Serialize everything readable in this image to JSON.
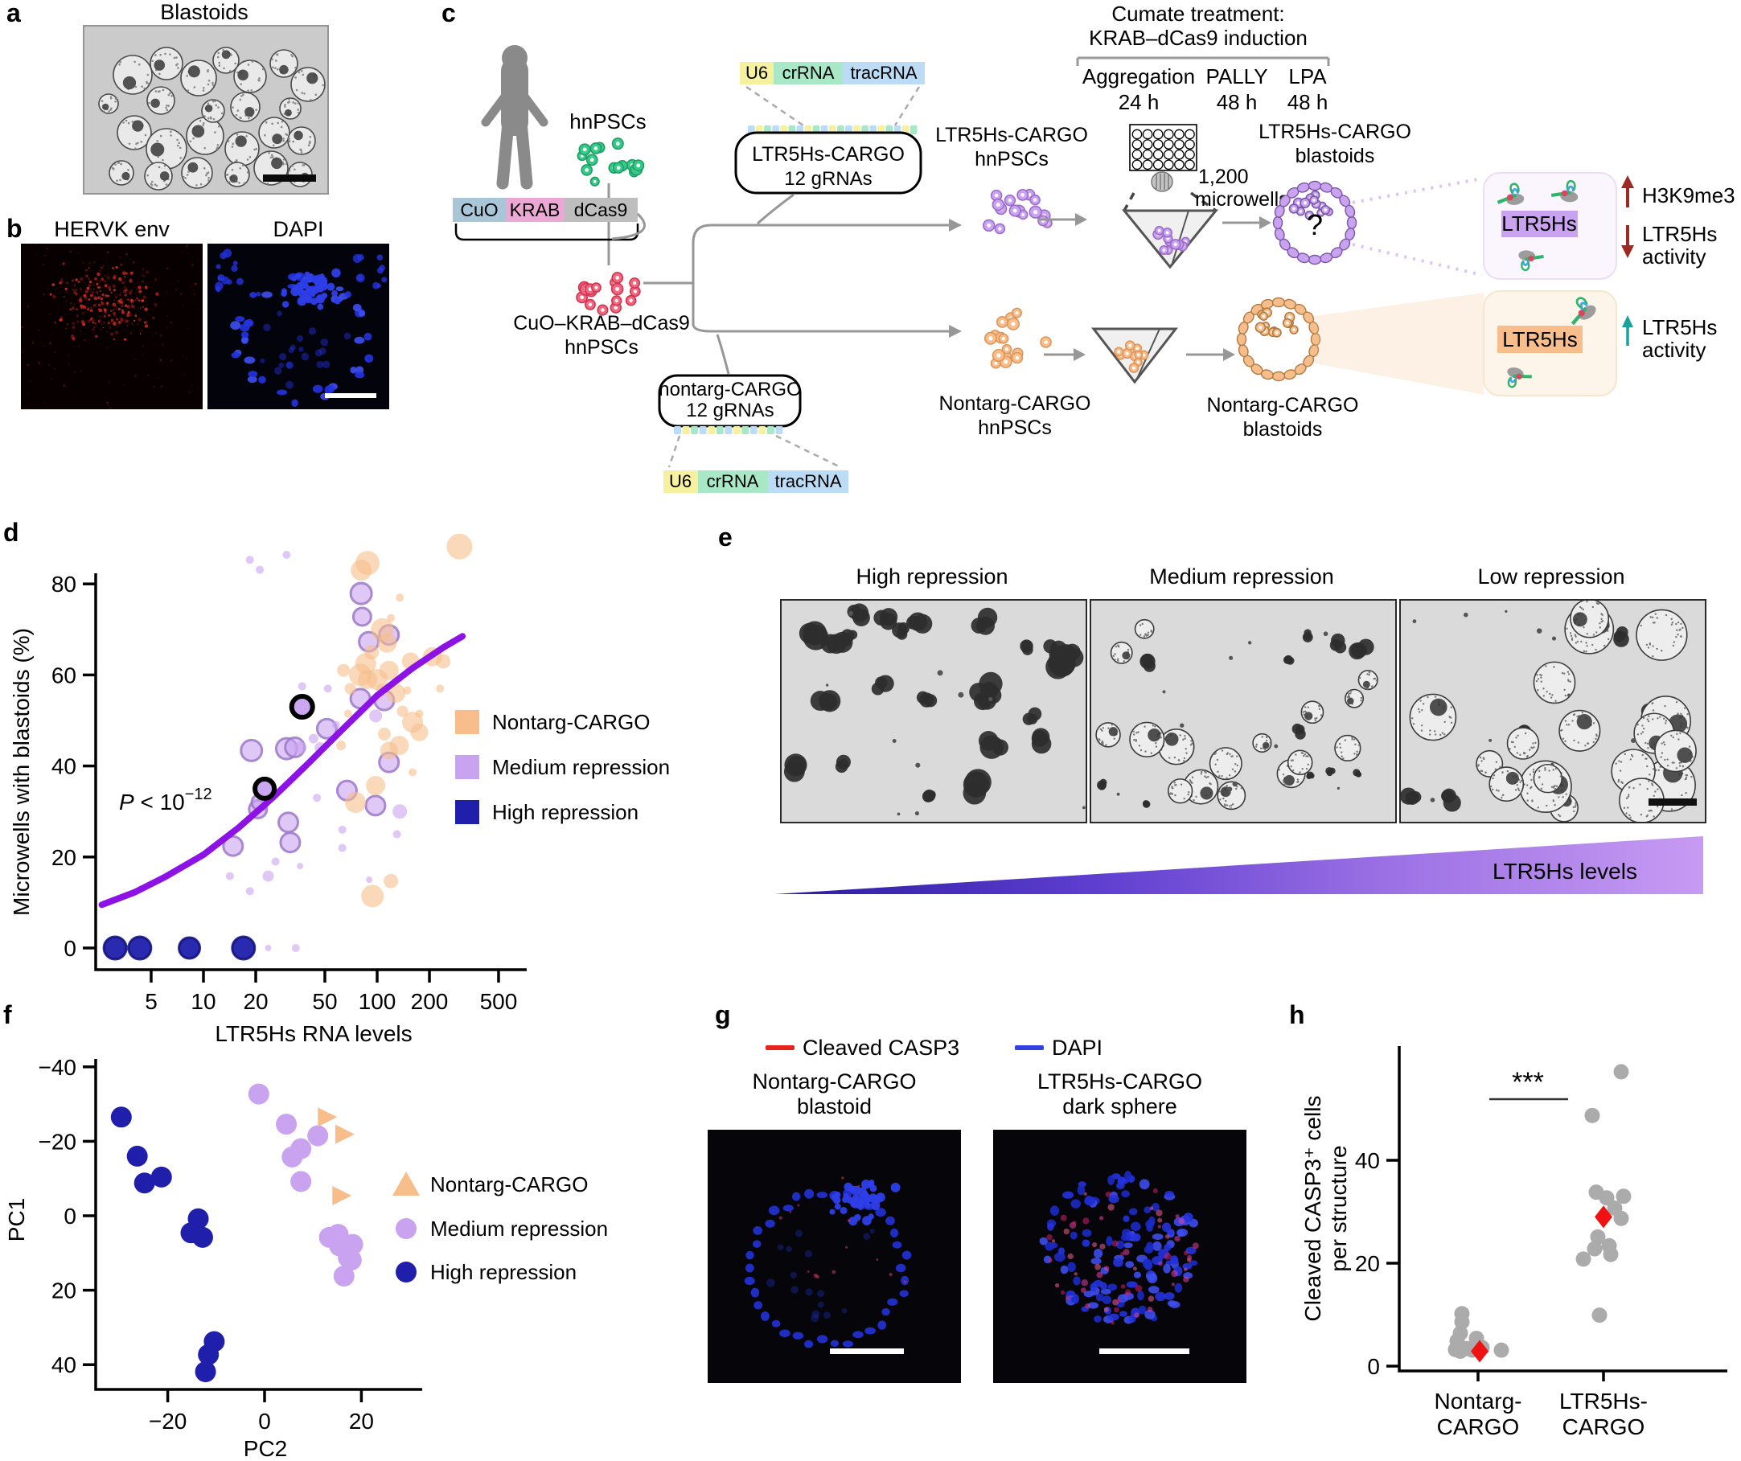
{
  "figure": {
    "a": {
      "label": "a",
      "title": "Blastoids"
    },
    "b": {
      "label": "b",
      "titles": [
        "HERVK env",
        "DAPI"
      ]
    },
    "c": {
      "label": "c",
      "hnpscs": "hnPSCs",
      "construct": [
        "CuO",
        "KRAB",
        "dCas9"
      ],
      "cuo_hnpscs": [
        "CuO–KRAB–dCas9",
        "hnPSCs"
      ],
      "grna_cassette": [
        "U6",
        "crRNA",
        "tracRNA"
      ],
      "ltr5hs_box": [
        "LTR5Hs-CARGO",
        "12 gRNAs"
      ],
      "nontarg_box": [
        "nontarg-CARGO",
        "12 gRNAs"
      ],
      "cumate": [
        "Cumate treatment:",
        "KRAB–dCas9 induction"
      ],
      "stages": [
        {
          "name": "Aggregation",
          "time": "24 h"
        },
        {
          "name": "PALLY",
          "time": "48 h"
        },
        {
          "name": "LPA",
          "time": "48 h"
        }
      ],
      "microwells": [
        "1,200",
        "microwells"
      ],
      "ltr5hs_hnpscs": [
        "LTR5Hs-CARGO",
        "hnPSCs"
      ],
      "nontarg_hnpscs": [
        "Nontarg-CARGO",
        "hnPSCs"
      ],
      "ltr5hs_blastoids": [
        "LTR5Hs-CARGO",
        "blastoids"
      ],
      "nontarg_blastoids": [
        "Nontarg-CARGO",
        "blastoids"
      ],
      "question_mark": "?",
      "gene_label": "LTR5Hs",
      "effects_top": [
        {
          "lines": [
            "H3K9me3"
          ],
          "direction": "up"
        },
        {
          "lines": [
            "LTR5Hs",
            "activity"
          ],
          "direction": "down"
        }
      ],
      "effects_bottom": [
        {
          "lines": [
            "LTR5Hs",
            "activity"
          ],
          "direction": "up"
        }
      ]
    },
    "d": {
      "label": "d"
    },
    "e": {
      "label": "e",
      "titles": [
        "High repression",
        "Medium repression",
        "Low repression"
      ],
      "wedge_label": "LTR5Hs levels"
    },
    "f": {
      "label": "f"
    },
    "g": {
      "label": "g",
      "legend": [
        {
          "label": "Cleaved CASP3"
        },
        {
          "label": "DAPI"
        }
      ],
      "titles": [
        {
          "line1": "Nontarg-CARGO",
          "line2": "blastoid"
        },
        {
          "line1": "LTR5Hs-CARGO",
          "line2": "dark sphere"
        }
      ]
    },
    "h": {
      "label": "h"
    }
  },
  "chart_data": [
    {
      "id": "d",
      "type": "scatter",
      "xscale": "log",
      "xlabel": "LTR5Hs RNA levels",
      "ylabel": "Microwells with blastoids (%)",
      "xticks": [
        5,
        10,
        20,
        50,
        100,
        200,
        500
      ],
      "yticks": [
        0,
        20,
        40,
        60,
        80
      ],
      "xlim": [
        2.5,
        500
      ],
      "ylim": [
        -6,
        92
      ],
      "grid": false,
      "legend_position": "right",
      "annotation": {
        "p": "P",
        "rest": " < 10",
        "exp": "−12"
      },
      "legend": [
        "Nontarg-CARGO",
        "Medium repression",
        "High repression"
      ],
      "trend_color": "#8C12E6",
      "trend": [
        [
          2.6,
          9.5
        ],
        [
          4,
          12.2
        ],
        [
          6,
          15.6
        ],
        [
          10,
          20.5
        ],
        [
          16,
          26.5
        ],
        [
          25,
          33
        ],
        [
          40,
          40.5
        ],
        [
          63,
          48
        ],
        [
          100,
          55.5
        ],
        [
          160,
          61.5
        ],
        [
          240,
          66
        ],
        [
          310,
          68.5
        ]
      ],
      "series": [
        {
          "name": "Nontarg-CARGO",
          "color": "#F7BE8C",
          "points": [
            [
              88,
              84.6,
              15
            ],
            [
              298,
              88.2,
              16
            ],
            [
              81,
              83,
              13
            ],
            [
              107,
              70,
              14
            ],
            [
              114,
              67,
              12
            ],
            [
              86,
              62.5,
              13
            ],
            [
              80,
              60,
              14
            ],
            [
              88,
              59,
              12
            ],
            [
              100,
              59,
              13
            ],
            [
              117,
              61,
              12
            ],
            [
              128,
              56,
              12
            ],
            [
              156,
              63,
              11
            ],
            [
              208,
              64,
              12
            ],
            [
              160,
              49.6,
              13
            ],
            [
              175,
              47.4,
              11
            ],
            [
              134,
              44.5,
              12
            ],
            [
              117,
              43.4,
              11
            ],
            [
              75,
              32,
              13
            ],
            [
              98,
              35.7,
              12
            ],
            [
              94,
              11.4,
              14
            ],
            [
              120,
              14.7,
              9
            ],
            [
              62,
              44.5,
              6
            ],
            [
              160,
              38.6,
              5
            ],
            [
              175,
              51.5,
              5
            ],
            [
              149,
              56.6,
              5
            ],
            [
              68,
              51.5,
              5
            ],
            [
              230,
              57,
              5
            ],
            [
              140,
              52,
              7
            ],
            [
              110,
              47,
              8
            ],
            [
              240,
              63,
              9
            ],
            [
              135,
              77,
              5
            ],
            [
              120,
              72.5,
              5
            ],
            [
              105,
              57,
              6
            ],
            [
              93,
              65,
              9
            ],
            [
              70,
              57,
              7
            ],
            [
              64,
              61,
              8
            ]
          ]
        },
        {
          "name": "Medium repression",
          "color": "#C9A2F0",
          "points": [
            [
              18.9,
              43.4,
              13
            ],
            [
              30.1,
              43.8,
              13
            ],
            [
              33.6,
              44.1,
              12
            ],
            [
              51.3,
              48.2,
              12
            ],
            [
              80,
              54.8,
              12
            ],
            [
              80.9,
              77.9,
              13
            ],
            [
              82,
              72.8,
              11
            ],
            [
              89.5,
              67.3,
              12
            ],
            [
              117,
              68.8,
              12
            ],
            [
              110,
              54.4,
              12
            ],
            [
              117,
              40.8,
              12
            ],
            [
              97.8,
              31.3,
              12
            ],
            [
              67,
              34.6,
              12
            ],
            [
              30.8,
              27.6,
              12
            ],
            [
              31.6,
              23.2,
              12
            ],
            [
              20.6,
              30.5,
              11
            ],
            [
              21.1,
              32,
              10
            ],
            [
              14.8,
              22.4,
              12
            ],
            [
              23.6,
              15.8,
              7
            ],
            [
              18.5,
              85.3,
              5
            ],
            [
              21.1,
              83.1,
              5
            ],
            [
              30.1,
              86.4,
              5
            ],
            [
              14.2,
              15.8,
              5
            ],
            [
              18.5,
              12.5,
              5
            ],
            [
              34,
              0,
              5
            ],
            [
              23.6,
              0,
              4
            ],
            [
              37,
              57.5,
              5
            ],
            [
              52,
              57,
              5
            ],
            [
              26,
              19,
              5
            ],
            [
              45,
              33,
              5
            ],
            [
              63,
              26,
              5
            ],
            [
              63,
              22,
              5
            ],
            [
              36,
              18,
              4
            ],
            [
              90,
              15,
              4
            ],
            [
              130,
              25,
              5
            ],
            [
              135,
              30,
              9
            ],
            [
              43,
              46,
              6
            ],
            [
              47,
              44,
              7
            ],
            [
              36,
              44,
              8
            ],
            [
              58,
              49,
              5
            ],
            [
              98,
              51,
              8
            ]
          ]
        },
        {
          "name": "High repression",
          "color": "#1F1FAC",
          "points": [
            [
              3.1,
              0,
              14
            ],
            [
              4.3,
              0,
              14
            ],
            [
              8.3,
              0,
              13
            ],
            [
              17,
              0,
              14
            ]
          ]
        },
        {
          "name": "Medium repression (outlined)",
          "color": "#C9A2F0",
          "outlined": true,
          "points": [
            [
              37,
              53,
              13
            ],
            [
              22.5,
              35,
              12
            ]
          ]
        }
      ]
    },
    {
      "id": "f",
      "type": "scatter",
      "xlabel": "PC2",
      "ylabel": "PC1",
      "xticks": [
        -20,
        0,
        20
      ],
      "yticks": [
        -40,
        -20,
        0,
        20,
        40
      ],
      "y_inverted": true,
      "xlim": [
        -35,
        30
      ],
      "ylim": [
        -42,
        45
      ],
      "grid": false,
      "legend_position": "right",
      "legend": [
        {
          "label": "Nontarg-CARGO",
          "marker": "triangle"
        },
        {
          "label": "Medium repression",
          "marker": "circle"
        },
        {
          "label": "High repression",
          "marker": "circle"
        }
      ],
      "series": [
        {
          "name": "Nontarg-CARGO",
          "color": "#F7BE8C",
          "marker": "triangle-right",
          "points": [
            [
              12.5,
              -26.5
            ],
            [
              16.1,
              -21.9
            ],
            [
              15.5,
              -5.4
            ]
          ]
        },
        {
          "name": "Medium repression",
          "color": "#C9A2F0",
          "marker": "circle",
          "points": [
            [
              -1.2,
              -32.7
            ],
            [
              4.5,
              -24.6
            ],
            [
              11,
              -21.5
            ],
            [
              7.5,
              -18
            ],
            [
              5.7,
              -15.8
            ],
            [
              7.5,
              -9.2
            ],
            [
              13.4,
              5.8
            ],
            [
              15.2,
              5
            ],
            [
              15.5,
              8.1
            ],
            [
              18.2,
              7.7
            ],
            [
              17.3,
              11.2
            ],
            [
              17.9,
              11.9
            ],
            [
              16.4,
              16.2
            ]
          ]
        },
        {
          "name": "High repression",
          "color": "#1F1FAC",
          "marker": "circle",
          "points": [
            [
              -29.6,
              -26.5
            ],
            [
              -26.3,
              -16
            ],
            [
              -24.8,
              -8.8
            ],
            [
              -21.3,
              -10.4
            ],
            [
              -13.7,
              0.8
            ],
            [
              -15.2,
              4.6
            ],
            [
              -12.8,
              5.8
            ],
            [
              -10.4,
              33.8
            ],
            [
              -11.6,
              37.3
            ],
            [
              -12.2,
              41.9
            ]
          ]
        }
      ]
    },
    {
      "id": "h",
      "type": "dot",
      "ylabel_lines": [
        "Cleaved CASP3⁺ cells",
        "per structure"
      ],
      "yticks": [
        0,
        20,
        40
      ],
      "ylim": [
        0,
        60
      ],
      "categories": [
        [
          "Nontarg-",
          "CARGO"
        ],
        [
          "LTR5Hs-",
          "CARGO"
        ]
      ],
      "significance": "***",
      "dot_color": "#ABABAB",
      "mean_color": "#F01212",
      "groups": [
        {
          "name": "Nontarg-CARGO",
          "mean": 2.9,
          "mean_dx": 2,
          "points": [
            [
              -20,
              10.2
            ],
            [
              -20,
              8.6
            ],
            [
              -22,
              6.4
            ],
            [
              -26,
              4.9
            ],
            [
              -2,
              5.4
            ],
            [
              -28,
              3.2
            ],
            [
              -22,
              2.9
            ],
            [
              -14,
              3.4
            ],
            [
              -7,
              3.1
            ],
            [
              29,
              3.1
            ],
            [
              5,
              3.6
            ]
          ]
        },
        {
          "name": "LTR5Hs-CARGO",
          "mean": 29,
          "mean_dx": 0,
          "points": [
            [
              22,
              57.2
            ],
            [
              -14,
              48.7
            ],
            [
              -9,
              33.8
            ],
            [
              4,
              32.7
            ],
            [
              25,
              33
            ],
            [
              14,
              30.7
            ],
            [
              22,
              28.7
            ],
            [
              -7,
              25.1
            ],
            [
              7,
              23.4
            ],
            [
              -11,
              22.8
            ],
            [
              9,
              21.7
            ],
            [
              -25,
              20.8
            ],
            [
              -5,
              9.9
            ]
          ]
        }
      ]
    }
  ],
  "colors": {
    "nontarg_orange": "#F7BE8C",
    "medium_purple": "#C9A2F0",
    "high_blue": "#1F1FAC",
    "trend_purple": "#8C12E6",
    "mean_red": "#F01212",
    "dot_gray": "#ABABAB",
    "casp3_red": "#E8231E",
    "dapi_blue": "#3340E0",
    "effect_darkred": "#9E2A26",
    "effect_teal": "#18A49B",
    "wedge_start": "#2A1BA0",
    "wedge_end": "#C79BF2",
    "cell_green": "#35C98A",
    "cell_pink": "#F06880",
    "cell_purple": "#C9A2F0",
    "cell_orange": "#F7BE8C",
    "u6_yellow": "#F5F1A0",
    "crrna_green": "#A8E8C6",
    "tracrna_blue": "#BCDCF6",
    "cuo_blue": "#A9C6D9",
    "krab_pink": "#ECA8D5",
    "dcas9_gray": "#BEBEBE"
  }
}
